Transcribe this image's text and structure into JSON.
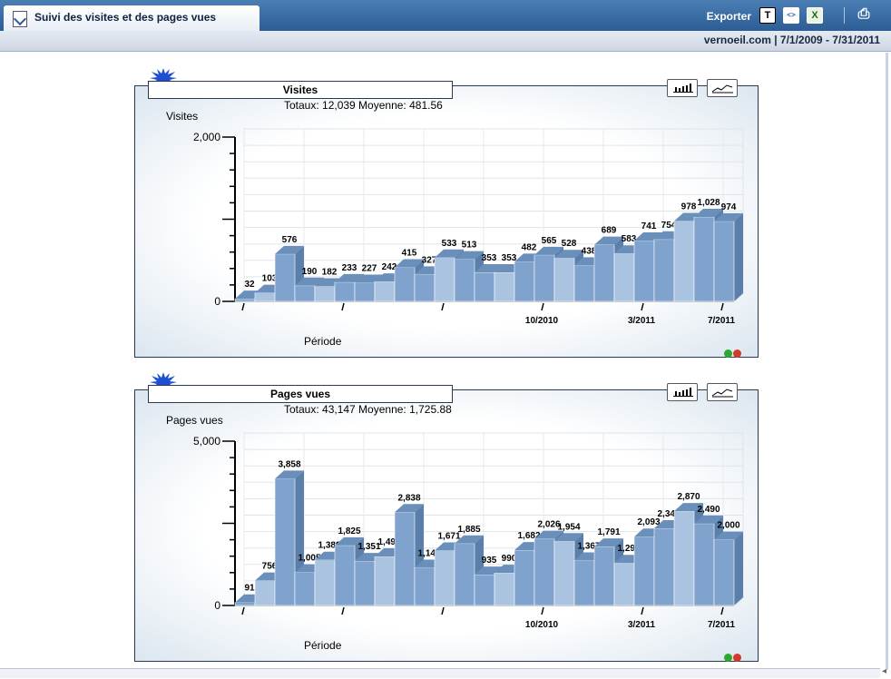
{
  "header": {
    "title": "Suivi des visites et des pages vues",
    "export_label": "Exporter",
    "subtitle": "vernoeil.com  |  7/1/2009 - 7/31/2011",
    "icons": [
      "text-export-icon",
      "xml-export-icon",
      "excel-export-icon",
      "print-icon"
    ]
  },
  "colors": {
    "header_bg": "#2c5d94",
    "bar_dark": "#6f96c3",
    "bar_light": "#a9c3e0",
    "led_green": "#2fa82f",
    "led_red": "#d23a2a"
  },
  "chart_data": [
    {
      "type": "bar",
      "title": "Visites",
      "summary": "Totaux: 12,039   Moyenne: 481.56",
      "ylabel": "Visites",
      "xlabel": "Période",
      "ylim": [
        0,
        2000
      ],
      "y_tick_labels": [
        "0",
        "2,000"
      ],
      "x_tick_labels": [
        "10/2010",
        "3/2011",
        "7/2011"
      ],
      "values": [
        32,
        103,
        576,
        190,
        182,
        233,
        227,
        242,
        415,
        327,
        533,
        513,
        353,
        353,
        482,
        565,
        528,
        438,
        689,
        583,
        741,
        754,
        978,
        1028,
        974
      ],
      "value_labels": [
        "32",
        "103",
        "576",
        "190",
        "182",
        "233",
        "227",
        "242",
        "415",
        "327",
        "533",
        "513",
        "353",
        "353",
        "482",
        "565",
        "528",
        "438",
        "689",
        "583",
        "741",
        "754",
        "978",
        "1,028",
        "974"
      ]
    },
    {
      "type": "bar",
      "title": "Pages vues",
      "summary": "Totaux: 43,147   Moyenne: 1,725.88",
      "ylabel": "Pages vues",
      "xlabel": "Période",
      "ylim": [
        0,
        5000
      ],
      "y_tick_labels": [
        "0",
        "5,000"
      ],
      "x_tick_labels": [
        "10/2010",
        "3/2011",
        "7/2011"
      ],
      "values": [
        91,
        756,
        3858,
        1005,
        1389,
        1825,
        1351,
        1493,
        2838,
        1146,
        1671,
        1885,
        935,
        990,
        1682,
        2026,
        1954,
        1367,
        1791,
        1293,
        2093,
        2348,
        2870,
        2490,
        2000
      ],
      "value_labels": [
        "91",
        "756",
        "3,858",
        "1,005",
        "1,389",
        "1,825",
        "1,351",
        "1,493",
        "2,838",
        "1,146",
        "1,671",
        "1,885",
        "935",
        "990",
        "1,682",
        "2,026",
        "1,954",
        "1,367",
        "1,791",
        "1,293",
        "2,093",
        "2,348",
        "2,870",
        "2,490",
        "2,000"
      ]
    }
  ]
}
